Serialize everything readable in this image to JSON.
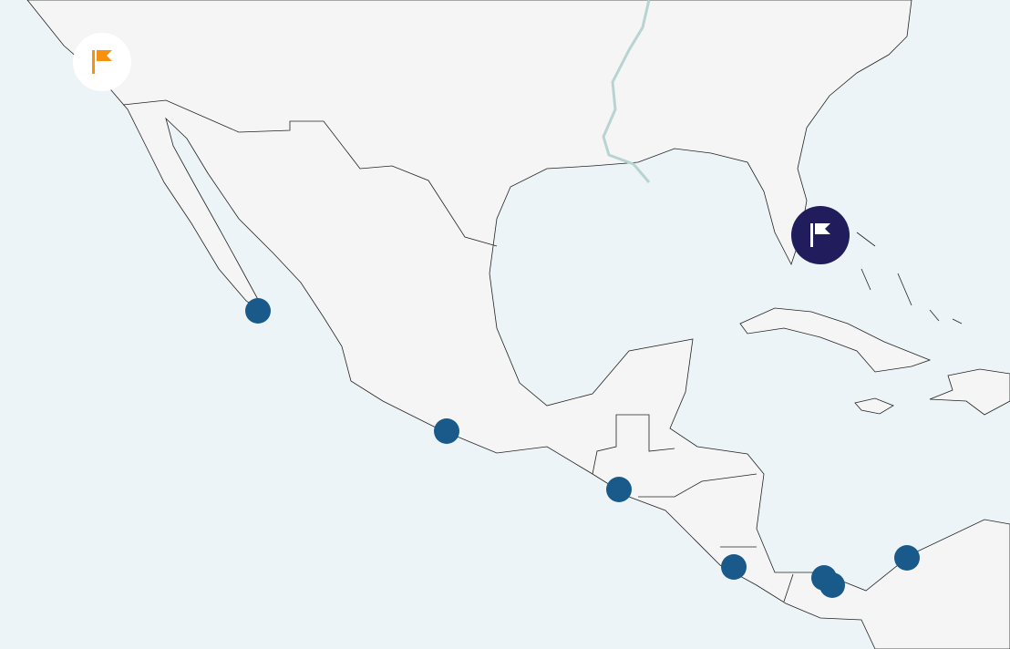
{
  "colors": {
    "sea": "#edf4f7",
    "land": "#f5f5f5",
    "border": "#222222",
    "river": "#b8d4d2",
    "dot": "#1a5a8a",
    "flag_origin_bg": "#ffffff",
    "flag_origin_icon": "#f7900f",
    "flag_dest_bg": "#211c5b",
    "flag_dest_icon": "#ffffff"
  },
  "markers": {
    "origin": {
      "icon": "flag-icon",
      "label": ""
    },
    "destination": {
      "icon": "flag-icon",
      "label": ""
    },
    "stops": [
      {
        "icon": "circle"
      },
      {
        "icon": "circle"
      },
      {
        "icon": "circle"
      },
      {
        "icon": "circle"
      },
      {
        "icon": "circle"
      },
      {
        "icon": "circle"
      },
      {
        "icon": "circle"
      }
    ]
  }
}
